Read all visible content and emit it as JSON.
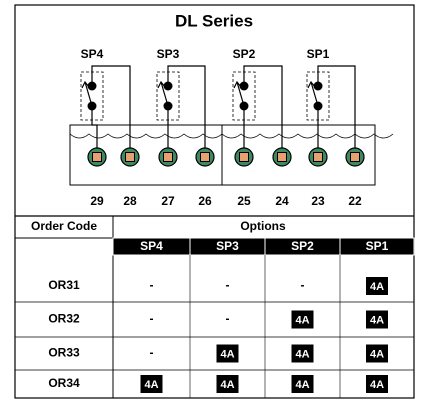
{
  "title": "DL Series",
  "switches": [
    "SP4",
    "SP3",
    "SP2",
    "SP1"
  ],
  "terminals": [
    29,
    28,
    27,
    26,
    25,
    24,
    23,
    22
  ],
  "table": {
    "headers": [
      "Order Code",
      "Options"
    ],
    "columns": [
      "SP4",
      "SP3",
      "SP2",
      "SP1"
    ],
    "rows": [
      [
        "OR31",
        "-",
        "-",
        "-",
        "4A"
      ],
      [
        "OR32",
        "-",
        "-",
        "4A",
        "4A"
      ],
      [
        "OR33",
        "-",
        "4A",
        "4A",
        "4A"
      ],
      [
        "OR34",
        "4A",
        "4A",
        "4A",
        "4A"
      ]
    ]
  }
}
